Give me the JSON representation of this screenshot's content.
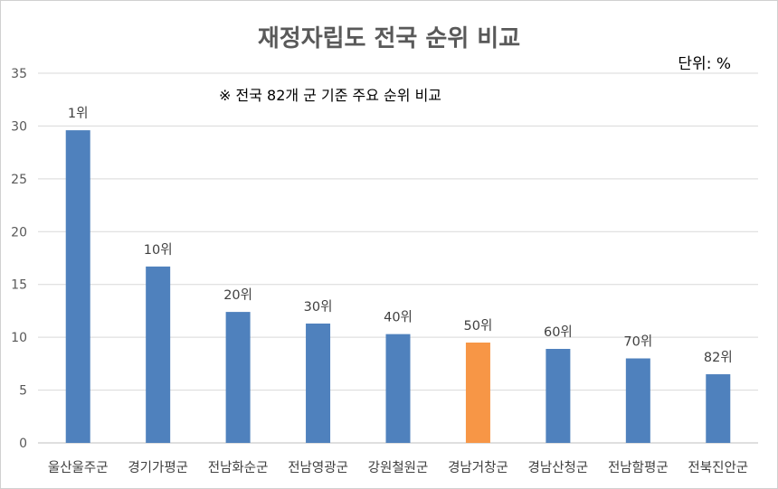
{
  "chart_data": {
    "type": "bar",
    "title": "재정자립도 전국 순위 비교",
    "unit_label": "단위: %",
    "note": "※ 전국 82개 군 기준 주요 순위 비교",
    "categories": [
      "울산울주군",
      "경기가평군",
      "전남화순군",
      "전남영광군",
      "강원철원군",
      "경남거창군",
      "경남산청군",
      "전남함평군",
      "전북진안군"
    ],
    "values": [
      29.6,
      16.7,
      12.4,
      11.3,
      10.3,
      9.5,
      8.9,
      8.0,
      6.5
    ],
    "data_labels": [
      "1위",
      "10위",
      "20위",
      "30위",
      "40위",
      "50위",
      "60위",
      "70위",
      "82위"
    ],
    "ylim": [
      0,
      35
    ],
    "yticks": [
      0,
      5,
      10,
      15,
      20,
      25,
      30,
      35
    ],
    "grid": true,
    "colors": {
      "default": "#4f81bd",
      "highlight": "#f79646",
      "gridline": "#d9d9d9"
    },
    "highlight_index": 5
  }
}
